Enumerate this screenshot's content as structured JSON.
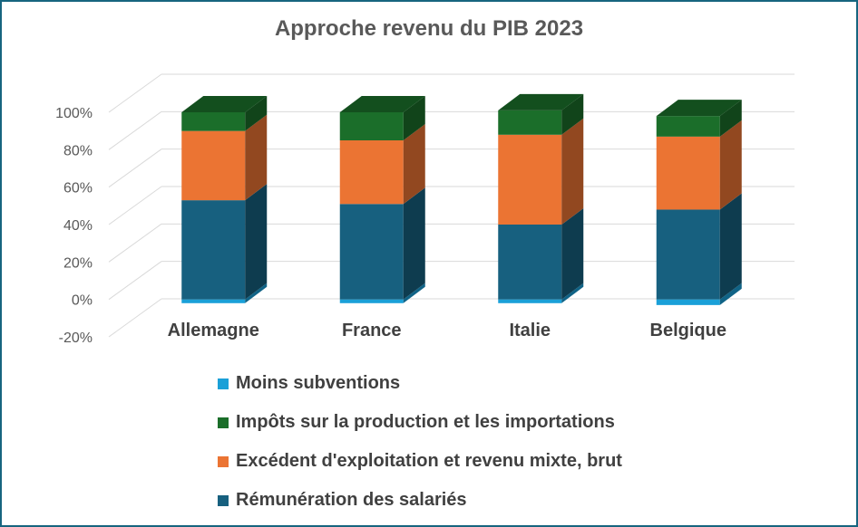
{
  "chart_data": {
    "type": "bar",
    "stacked": true,
    "style": "3d",
    "title": "Approche revenu du PIB 2023",
    "categories": [
      "Allemagne",
      "France",
      "Italie",
      "Belgique"
    ],
    "ylim": [
      -20,
      100
    ],
    "yticks": [
      "-20%",
      "0%",
      "20%",
      "40%",
      "60%",
      "80%",
      "100%"
    ],
    "series": [
      {
        "name": "Moins subventions",
        "color": "#1aa0d8",
        "values": [
          -2,
          -2,
          -2,
          -3
        ]
      },
      {
        "name": "Rémunération des salariés",
        "color": "#17607f",
        "values": [
          53,
          51,
          40,
          48
        ]
      },
      {
        "name": "Excédent d'exploitation et revenu mixte, brut",
        "color": "#eb7433",
        "values": [
          37,
          34,
          48,
          39
        ]
      },
      {
        "name": "Impôts sur la production et les importations",
        "color": "#1b6e2a",
        "values": [
          10,
          15,
          13,
          11
        ]
      }
    ],
    "legend_order": [
      0,
      3,
      2,
      1
    ],
    "legend_position": "bottom",
    "grid": true
  }
}
